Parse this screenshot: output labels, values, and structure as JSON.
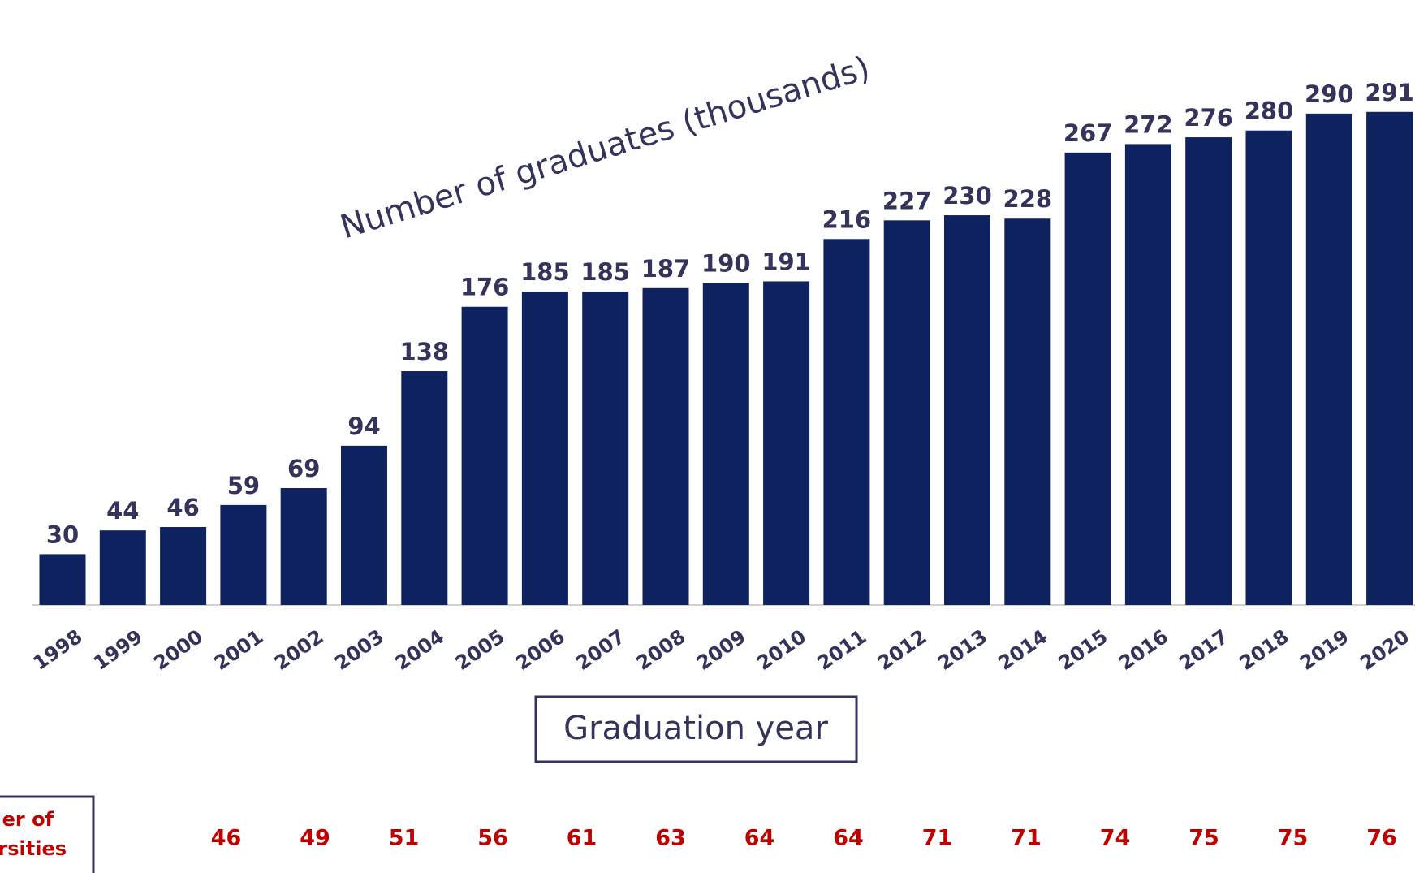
{
  "chart_data": {
    "type": "bar",
    "title": "Number of graduates (thousands)",
    "x_label": "Graduation year",
    "categories": [
      "1998",
      "1999",
      "2000",
      "2001",
      "2002",
      "2003",
      "2004",
      "2005",
      "2006",
      "2007",
      "2008",
      "2009",
      "2010",
      "2011",
      "2012",
      "2013",
      "2014",
      "2015",
      "2016",
      "2017",
      "2018",
      "2019",
      "2020"
    ],
    "values": [
      30,
      44,
      46,
      59,
      69,
      94,
      138,
      176,
      185,
      185,
      187,
      190,
      191,
      216,
      227,
      230,
      228,
      267,
      272,
      276,
      280,
      290,
      291
    ],
    "color": "#0e2260",
    "ylim": [
      0,
      300
    ],
    "bottom_row": {
      "label": [
        "er of",
        "rsities"
      ],
      "color": "#c00000",
      "values": [
        46,
        49,
        51,
        56,
        61,
        63,
        64,
        64,
        71,
        71,
        74,
        75,
        75,
        76
      ]
    }
  }
}
